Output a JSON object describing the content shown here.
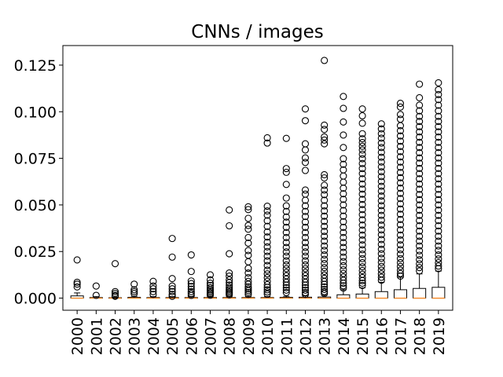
{
  "chart_data": {
    "type": "box",
    "title": "CNNs / images",
    "xlabel": "",
    "ylabel": "",
    "ylim": [
      -0.0065,
      0.1355
    ],
    "yticks": [
      0.0,
      0.025,
      0.05,
      0.075,
      0.1,
      0.125
    ],
    "ytick_labels": [
      "0.000",
      "0.025",
      "0.050",
      "0.075",
      "0.100",
      "0.125"
    ],
    "grid": false,
    "categories": [
      "2000",
      "2001",
      "2002",
      "2003",
      "2004",
      "2005",
      "2006",
      "2007",
      "2008",
      "2009",
      "2010",
      "2011",
      "2012",
      "2013",
      "2014",
      "2015",
      "2016",
      "2017",
      "2018",
      "2019"
    ],
    "boxes": [
      {
        "q1": 0,
        "median": 0,
        "q3": 0.0012,
        "whisker_low": 0,
        "whisker_high": 0.0028,
        "fliers": [
          0.0205,
          0.0085,
          0.0075,
          0.006
        ]
      },
      {
        "q1": 0,
        "median": 0,
        "q3": 0.0003,
        "whisker_low": 0,
        "whisker_high": 0.0008,
        "fliers": [
          0.0065,
          0.0015
        ]
      },
      {
        "q1": 0,
        "median": 0,
        "q3": 0.0002,
        "whisker_low": 0,
        "whisker_high": 0.0005,
        "fliers": [
          0.0185,
          0.0035,
          0.0025,
          0.0015,
          0.001
        ]
      },
      {
        "q1": 0,
        "median": 0,
        "q3": 0.0004,
        "whisker_low": 0,
        "whisker_high": 0.001,
        "fliers": [
          0.0075,
          0.0045,
          0.0035,
          0.0025
        ]
      },
      {
        "q1": 0,
        "median": 0,
        "q3": 0.0003,
        "whisker_low": 0,
        "whisker_high": 0.0008,
        "fliers": [
          0.009,
          0.0065,
          0.005,
          0.0035,
          0.002
        ]
      },
      {
        "q1": 0,
        "median": 0,
        "q3": 0.0003,
        "whisker_low": 0,
        "whisker_high": 0.0008,
        "fliers": [
          0.032,
          0.022,
          0.0105,
          0.0065,
          0.005,
          0.0035,
          0.002,
          0.001
        ]
      },
      {
        "q1": 0,
        "median": 0,
        "q3": 0.0003,
        "whisker_low": 0,
        "whisker_high": 0.0008,
        "fliers": [
          0.0232,
          0.0143,
          0.0092,
          0.0078,
          0.0062,
          0.0048,
          0.0035,
          0.0025,
          0.0015
        ]
      },
      {
        "q1": 0,
        "median": 0,
        "q3": 0.0003,
        "whisker_low": 0,
        "whisker_high": 0.0008,
        "fliers": [
          0.0125,
          0.0098,
          0.008,
          0.0068,
          0.0056,
          0.0046,
          0.0038,
          0.003,
          0.0023,
          0.0016
        ]
      },
      {
        "q1": 0,
        "median": 0,
        "q3": 0.0003,
        "whisker_low": 0,
        "whisker_high": 0.0008,
        "fliers": [
          0.0473,
          0.0388,
          0.0238,
          0.0135,
          0.0118,
          0.0098,
          0.0083,
          0.007,
          0.0058,
          0.0048,
          0.004,
          0.0032,
          0.0025,
          0.0018
        ]
      },
      {
        "q1": 0,
        "median": 0,
        "q3": 0.0003,
        "whisker_low": 0,
        "whisker_high": 0.0008,
        "fliers": [
          0.049,
          0.0475,
          0.0428,
          0.039,
          0.037,
          0.0325,
          0.0295,
          0.0255,
          0.023,
          0.0195,
          0.016,
          0.0135,
          0.011,
          0.009,
          0.0075,
          0.006,
          0.005,
          0.004,
          0.003,
          0.002
        ]
      },
      {
        "q1": 0,
        "median": 0,
        "q3": 0.0003,
        "whisker_low": 0,
        "whisker_high": 0.0008,
        "fliers": [
          0.086,
          0.0832,
          0.0493,
          0.0468,
          0.0445,
          0.0415,
          0.0385,
          0.0355,
          0.0328,
          0.03,
          0.0275,
          0.025,
          0.0225,
          0.02,
          0.0175,
          0.015,
          0.013,
          0.011,
          0.009,
          0.0072,
          0.0058,
          0.0045,
          0.0033,
          0.0022
        ]
      },
      {
        "q1": 0,
        "median": 0,
        "q3": 0.0004,
        "whisker_low": 0,
        "whisker_high": 0.001,
        "fliers": [
          0.0857,
          0.0695,
          0.0675,
          0.061,
          0.0537,
          0.0495,
          0.0465,
          0.0435,
          0.0408,
          0.038,
          0.0352,
          0.0325,
          0.0298,
          0.0272,
          0.0248,
          0.0225,
          0.02,
          0.0178,
          0.0158,
          0.0138,
          0.012,
          0.0102,
          0.0085,
          0.007,
          0.0056,
          0.0043,
          0.003
        ]
      },
      {
        "q1": 0,
        "median": 0,
        "q3": 0.0005,
        "whisker_low": 0,
        "whisker_high": 0.0012,
        "fliers": [
          0.1015,
          0.0952,
          0.0828,
          0.0795,
          0.0752,
          0.0728,
          0.0685,
          0.058,
          0.0558,
          0.0525,
          0.0495,
          0.0465,
          0.0438,
          0.0408,
          0.038,
          0.0352,
          0.0325,
          0.0298,
          0.0272,
          0.0248,
          0.0225,
          0.02,
          0.0178,
          0.0158,
          0.0138,
          0.012,
          0.0102,
          0.0085,
          0.007,
          0.0056,
          0.0043,
          0.003,
          0.002
        ]
      },
      {
        "q1": 0,
        "median": 0,
        "q3": 0.0006,
        "whisker_low": 0,
        "whisker_high": 0.0015,
        "fliers": [
          0.1275,
          0.0928,
          0.0905,
          0.0865,
          0.0848,
          0.0828,
          0.0662,
          0.0645,
          0.0605,
          0.058,
          0.0555,
          0.0525,
          0.0495,
          0.0468,
          0.044,
          0.0412,
          0.0385,
          0.0358,
          0.0332,
          0.0306,
          0.028,
          0.0256,
          0.0232,
          0.0208,
          0.0186,
          0.0164,
          0.0144,
          0.0124,
          0.0106,
          0.0089,
          0.0074,
          0.006,
          0.0047,
          0.0035,
          0.0025
        ]
      },
      {
        "q1": 0,
        "median": 0,
        "q3": 0.0018,
        "whisker_low": 0,
        "whisker_high": 0.0045,
        "fliers": [
          0.1082,
          0.1018,
          0.0945,
          0.0875,
          0.0808,
          0.0748,
          0.0718,
          0.0688,
          0.0655,
          0.0622,
          0.059,
          0.056,
          0.053,
          0.05,
          0.047,
          0.044,
          0.041,
          0.038,
          0.0352,
          0.0325,
          0.0298,
          0.0272,
          0.0246,
          0.022,
          0.0196,
          0.0174,
          0.0152,
          0.0132,
          0.0113,
          0.0096,
          0.008,
          0.0066,
          0.0054
        ]
      },
      {
        "q1": 0,
        "median": 0,
        "q3": 0.0022,
        "whisker_low": 0,
        "whisker_high": 0.0055,
        "fliers": [
          0.1015,
          0.0978,
          0.0938,
          0.0882,
          0.0855,
          0.0835,
          0.0815,
          0.0795,
          0.0772,
          0.0748,
          0.0722,
          0.0695,
          0.0668,
          0.064,
          0.0612,
          0.0585,
          0.0558,
          0.053,
          0.0502,
          0.0475,
          0.0448,
          0.042,
          0.0392,
          0.0365,
          0.0338,
          0.0312,
          0.0286,
          0.026,
          0.0236,
          0.0212,
          0.019,
          0.0168,
          0.0148,
          0.0128,
          0.011,
          0.0094,
          0.008,
          0.0068
        ]
      },
      {
        "q1": 0,
        "median": 0,
        "q3": 0.0035,
        "whisker_low": 0,
        "whisker_high": 0.0085,
        "fliers": [
          0.0935,
          0.0908,
          0.0882,
          0.0858,
          0.0832,
          0.0808,
          0.0782,
          0.0756,
          0.073,
          0.0704,
          0.0678,
          0.0652,
          0.0626,
          0.06,
          0.0574,
          0.0548,
          0.0522,
          0.0496,
          0.047,
          0.0444,
          0.0418,
          0.0392,
          0.0366,
          0.034,
          0.0314,
          0.0288,
          0.0262,
          0.0238,
          0.0214,
          0.0192,
          0.017,
          0.015,
          0.013,
          0.0112,
          0.0096
        ]
      },
      {
        "q1": 0,
        "median": 0,
        "q3": 0.0045,
        "whisker_low": 0,
        "whisker_high": 0.0112,
        "fliers": [
          0.1045,
          0.1025,
          0.0985,
          0.096,
          0.0925,
          0.0898,
          0.087,
          0.0842,
          0.0814,
          0.0786,
          0.0758,
          0.073,
          0.0702,
          0.0674,
          0.0646,
          0.0618,
          0.059,
          0.0562,
          0.0534,
          0.0506,
          0.0478,
          0.045,
          0.0422,
          0.0394,
          0.0366,
          0.0338,
          0.0312,
          0.0286,
          0.026,
          0.0236,
          0.0212,
          0.019,
          0.017,
          0.015,
          0.0132,
          0.0118
        ]
      },
      {
        "q1": 0,
        "median": 0,
        "q3": 0.0052,
        "whisker_low": 0,
        "whisker_high": 0.013,
        "fliers": [
          0.1148,
          0.1075,
          0.1035,
          0.1005,
          0.0975,
          0.0948,
          0.092,
          0.0892,
          0.0864,
          0.0836,
          0.0808,
          0.078,
          0.0752,
          0.0724,
          0.0696,
          0.0668,
          0.064,
          0.0612,
          0.0584,
          0.0556,
          0.0528,
          0.05,
          0.0472,
          0.0444,
          0.0416,
          0.0388,
          0.036,
          0.0332,
          0.0306,
          0.028,
          0.0254,
          0.023,
          0.0206,
          0.0184,
          0.0164,
          0.0146
        ]
      },
      {
        "q1": 0,
        "median": 0,
        "q3": 0.0058,
        "whisker_low": 0,
        "whisker_high": 0.0145,
        "fliers": [
          0.1155,
          0.1118,
          0.1092,
          0.1065,
          0.1035,
          0.1005,
          0.0975,
          0.0948,
          0.092,
          0.0892,
          0.0864,
          0.0836,
          0.0808,
          0.078,
          0.0752,
          0.0724,
          0.0696,
          0.0668,
          0.064,
          0.0612,
          0.0584,
          0.0556,
          0.0528,
          0.05,
          0.0472,
          0.0444,
          0.0416,
          0.0388,
          0.036,
          0.0332,
          0.0306,
          0.028,
          0.0256,
          0.0232,
          0.021,
          0.019,
          0.0172,
          0.0158
        ]
      }
    ]
  }
}
